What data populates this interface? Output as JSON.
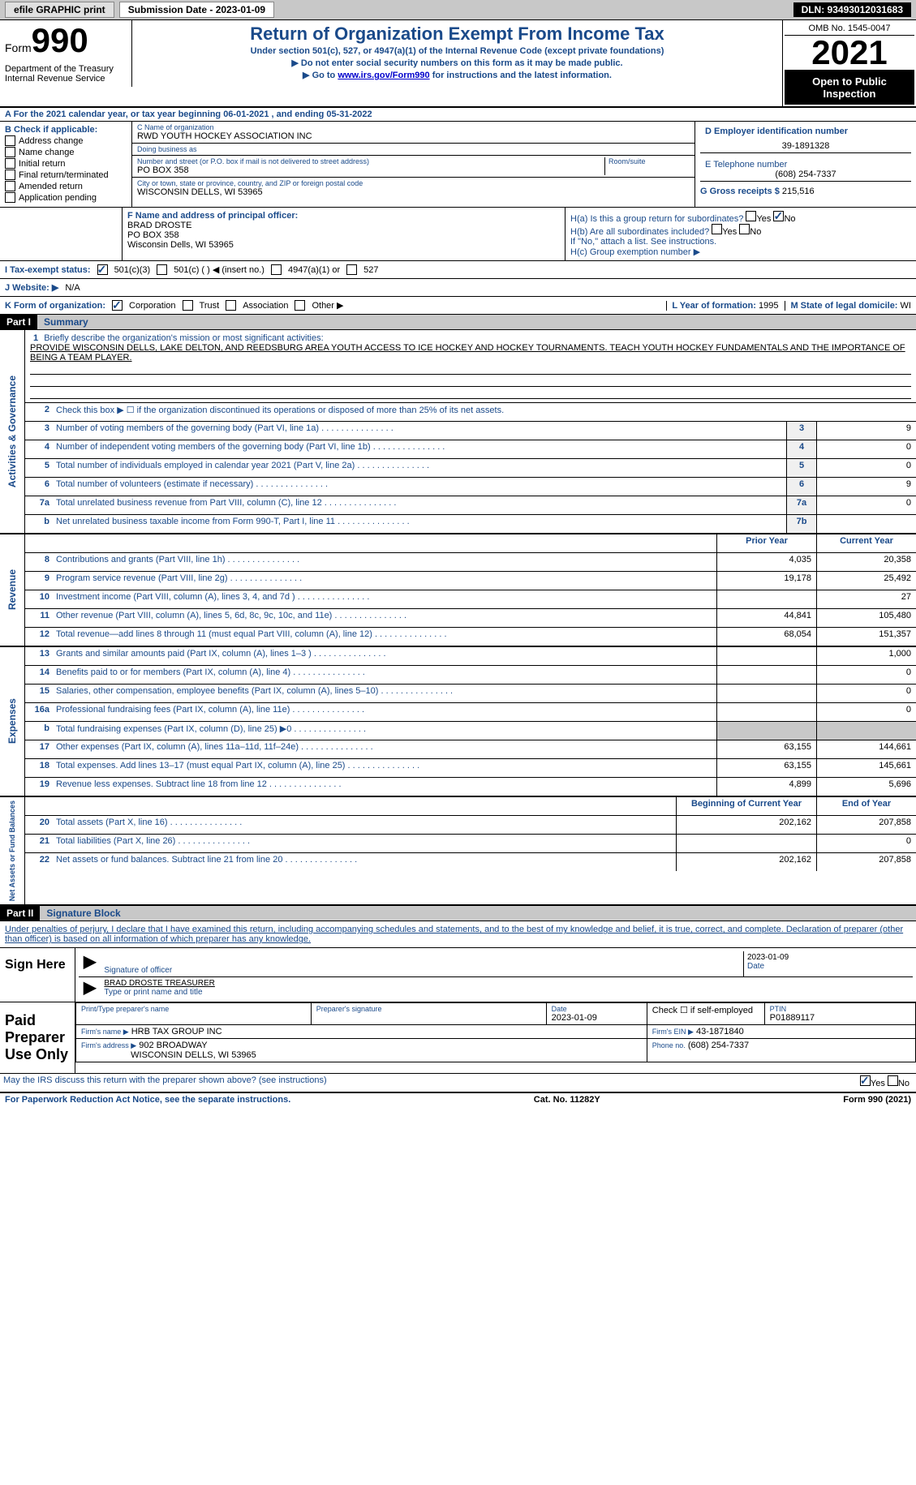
{
  "colors": {
    "heading_blue": "#1a4a8a",
    "link_blue": "#0000cc",
    "grey_bg": "#c8c8c8",
    "black": "#000000",
    "white": "#ffffff"
  },
  "topbar": {
    "efile": "efile GRAPHIC print",
    "submission_label": "Submission Date - 2023-01-09",
    "dln": "DLN: 93493012031683"
  },
  "header": {
    "form_word": "Form",
    "form_number": "990",
    "title": "Return of Organization Exempt From Income Tax",
    "subtitle1": "Under section 501(c), 527, or 4947(a)(1) of the Internal Revenue Code (except private foundations)",
    "subtitle2": "▶ Do not enter social security numbers on this form as it may be made public.",
    "subtitle3_pre": "▶ Go to ",
    "subtitle3_link": "www.irs.gov/Form990",
    "subtitle3_post": " for instructions and the latest information.",
    "omb": "OMB No. 1545-0047",
    "year": "2021",
    "open_public": "Open to Public Inspection",
    "dept": "Department of the Treasury",
    "irs": "Internal Revenue Service"
  },
  "row_a": "A For the 2021 calendar year, or tax year beginning 06-01-2021    , and ending 05-31-2022",
  "section_b": {
    "heading": "B Check if applicable:",
    "items": [
      "Address change",
      "Name change",
      "Initial return",
      "Final return/terminated",
      "Amended return",
      "Application pending"
    ]
  },
  "section_c": {
    "name_label": "C Name of organization",
    "name": "RWD YOUTH HOCKEY ASSOCIATION INC",
    "dba_label": "Doing business as",
    "dba": "",
    "addr_label": "Number and street (or P.O. box if mail is not delivered to street address)",
    "room_label": "Room/suite",
    "addr": "PO BOX 358",
    "city_label": "City or town, state or province, country, and ZIP or foreign postal code",
    "city": "WISCONSIN DELLS, WI  53965"
  },
  "section_d": {
    "ein_label": "D Employer identification number",
    "ein": "39-1891328",
    "phone_label": "E Telephone number",
    "phone": "(608) 254-7337",
    "gross_label": "G Gross receipts $",
    "gross": "215,516"
  },
  "section_f": {
    "label": "F  Name and address of principal officer:",
    "name": "BRAD DROSTE",
    "addr1": "PO BOX 358",
    "addr2": "Wisconsin Dells, WI  53965"
  },
  "section_h": {
    "ha_label": "H(a)  Is this a group return for subordinates?",
    "ha_yes": "Yes",
    "ha_no": "No",
    "hb_label": "H(b)  Are all subordinates included?",
    "hb_yes": "Yes",
    "hb_no": "No",
    "hb_note": "If \"No,\" attach a list. See instructions.",
    "hc_label": "H(c)  Group exemption number ▶"
  },
  "tax_status": {
    "label": "I   Tax-exempt status:",
    "opt1": "501(c)(3)",
    "opt2": "501(c) (   ) ◀ (insert no.)",
    "opt3": "4947(a)(1) or",
    "opt4": "527"
  },
  "website": {
    "label": "J   Website: ▶",
    "value": "N/A"
  },
  "k_row": {
    "label": "K Form of organization:",
    "opts": [
      "Corporation",
      "Trust",
      "Association",
      "Other ▶"
    ],
    "l_label": "L Year of formation:",
    "l_val": "1995",
    "m_label": "M State of legal domicile:",
    "m_val": "WI"
  },
  "part1": {
    "header": "Part I",
    "title": "Summary"
  },
  "mission": {
    "num": "1",
    "label": "Briefly describe the organization's mission or most significant activities:",
    "text": "PROVIDE WISCONSIN DELLS, LAKE DELTON, AND REEDSBURG AREA YOUTH ACCESS TO ICE HOCKEY AND HOCKEY TOURNAMENTS. TEACH YOUTH HOCKEY FUNDAMENTALS AND THE IMPORTANCE OF BEING A TEAM PLAYER."
  },
  "line2": "Check this box ▶ ☐  if the organization discontinued its operations or disposed of more than 25% of its net assets.",
  "summary_lines": [
    {
      "num": "3",
      "desc": "Number of voting members of the governing body (Part VI, line 1a)",
      "box": "3",
      "val": "9"
    },
    {
      "num": "4",
      "desc": "Number of independent voting members of the governing body (Part VI, line 1b)",
      "box": "4",
      "val": "0"
    },
    {
      "num": "5",
      "desc": "Total number of individuals employed in calendar year 2021 (Part V, line 2a)",
      "box": "5",
      "val": "0"
    },
    {
      "num": "6",
      "desc": "Total number of volunteers (estimate if necessary)",
      "box": "6",
      "val": "9"
    },
    {
      "num": "7a",
      "desc": "Total unrelated business revenue from Part VIII, column (C), line 12",
      "box": "7a",
      "val": "0"
    },
    {
      "num": "b",
      "desc": "Net unrelated business taxable income from Form 990-T, Part I, line 11",
      "box": "7b",
      "val": ""
    }
  ],
  "two_col_header": {
    "prior": "Prior Year",
    "current": "Current Year"
  },
  "revenue_lines": [
    {
      "num": "8",
      "desc": "Contributions and grants (Part VIII, line 1h)",
      "prior": "4,035",
      "current": "20,358"
    },
    {
      "num": "9",
      "desc": "Program service revenue (Part VIII, line 2g)",
      "prior": "19,178",
      "current": "25,492"
    },
    {
      "num": "10",
      "desc": "Investment income (Part VIII, column (A), lines 3, 4, and 7d )",
      "prior": "",
      "current": "27"
    },
    {
      "num": "11",
      "desc": "Other revenue (Part VIII, column (A), lines 5, 6d, 8c, 9c, 10c, and 11e)",
      "prior": "44,841",
      "current": "105,480"
    },
    {
      "num": "12",
      "desc": "Total revenue—add lines 8 through 11 (must equal Part VIII, column (A), line 12)",
      "prior": "68,054",
      "current": "151,357"
    }
  ],
  "expense_lines": [
    {
      "num": "13",
      "desc": "Grants and similar amounts paid (Part IX, column (A), lines 1–3 )",
      "prior": "",
      "current": "1,000"
    },
    {
      "num": "14",
      "desc": "Benefits paid to or for members (Part IX, column (A), line 4)",
      "prior": "",
      "current": "0"
    },
    {
      "num": "15",
      "desc": "Salaries, other compensation, employee benefits (Part IX, column (A), lines 5–10)",
      "prior": "",
      "current": "0"
    },
    {
      "num": "16a",
      "desc": "Professional fundraising fees (Part IX, column (A), line 11e)",
      "prior": "",
      "current": "0"
    },
    {
      "num": "b",
      "desc": "Total fundraising expenses (Part IX, column (D), line 25) ▶0",
      "prior": "shaded",
      "current": "shaded"
    },
    {
      "num": "17",
      "desc": "Other expenses (Part IX, column (A), lines 11a–11d, 11f–24e)",
      "prior": "63,155",
      "current": "144,661"
    },
    {
      "num": "18",
      "desc": "Total expenses. Add lines 13–17 (must equal Part IX, column (A), line 25)",
      "prior": "63,155",
      "current": "145,661"
    },
    {
      "num": "19",
      "desc": "Revenue less expenses. Subtract line 18 from line 12",
      "prior": "4,899",
      "current": "5,696"
    }
  ],
  "net_header": {
    "begin": "Beginning of Current Year",
    "end": "End of Year"
  },
  "net_lines": [
    {
      "num": "20",
      "desc": "Total assets (Part X, line 16)",
      "prior": "202,162",
      "current": "207,858"
    },
    {
      "num": "21",
      "desc": "Total liabilities (Part X, line 26)",
      "prior": "",
      "current": "0"
    },
    {
      "num": "22",
      "desc": "Net assets or fund balances. Subtract line 21 from line 20",
      "prior": "202,162",
      "current": "207,858"
    }
  ],
  "vert_labels": {
    "activities": "Activities & Governance",
    "revenue": "Revenue",
    "expenses": "Expenses",
    "net": "Net Assets or Fund Balances"
  },
  "part2": {
    "header": "Part II",
    "title": "Signature Block",
    "intro": "Under penalties of perjury, I declare that I have examined this return, including accompanying schedules and statements, and to the best of my knowledge and belief, it is true, correct, and complete. Declaration of preparer (other than officer) is based on all information of which preparer has any knowledge."
  },
  "sign": {
    "label": "Sign Here",
    "sig_label": "Signature of officer",
    "date": "2023-01-09",
    "date_label": "Date",
    "name": "BRAD DROSTE  TREASURER",
    "name_label": "Type or print name and title"
  },
  "preparer": {
    "label": "Paid Preparer Use Only",
    "name_label": "Print/Type preparer's name",
    "sig_label": "Preparer's signature",
    "date_label": "Date",
    "date": "2023-01-09",
    "self_emp": "Check ☐ if self-employed",
    "ptin_label": "PTIN",
    "ptin": "P01889117",
    "firm_name_label": "Firm's name      ▶",
    "firm_name": "HRB TAX GROUP INC",
    "firm_ein_label": "Firm's EIN ▶",
    "firm_ein": "43-1871840",
    "firm_addr_label": "Firm's address ▶",
    "firm_addr1": "902 BROADWAY",
    "firm_addr2": "WISCONSIN DELLS, WI  53965",
    "phone_label": "Phone no.",
    "phone": "(608) 254-7337"
  },
  "discuss": {
    "text": "May the IRS discuss this return with the preparer shown above? (see instructions)",
    "yes": "Yes",
    "no": "No"
  },
  "footer": {
    "left": "For Paperwork Reduction Act Notice, see the separate instructions.",
    "mid": "Cat. No. 11282Y",
    "right": "Form 990 (2021)"
  }
}
